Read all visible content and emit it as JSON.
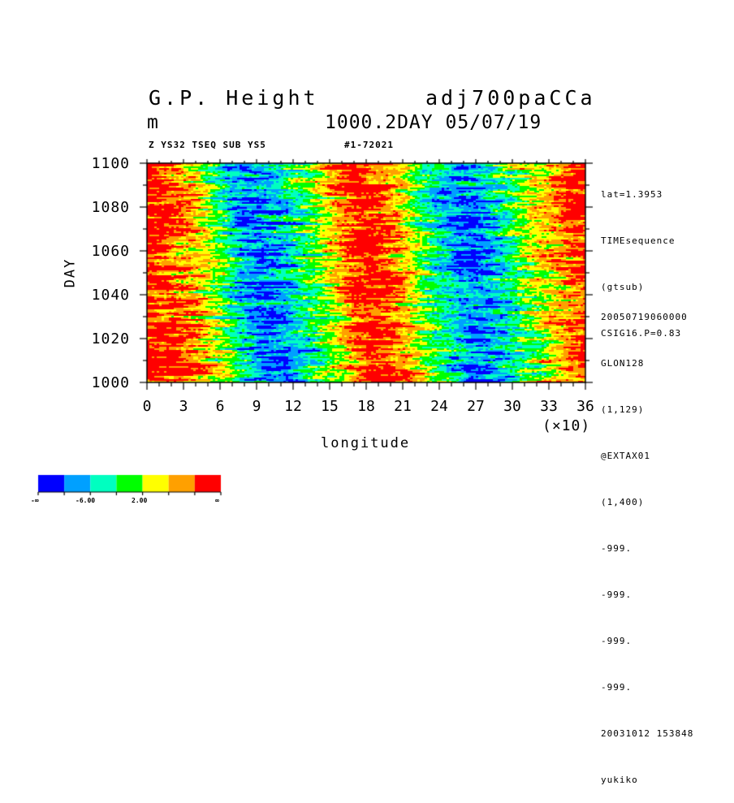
{
  "header": {
    "title_left": "G.P. Height",
    "title_right": "adj700paCCa",
    "unit": "m",
    "level_date": "1000.2DAY 05/07/19",
    "subtitle_left": "Z YS32 TSEQ SUB YS5",
    "subtitle_right": "#1-72021"
  },
  "side_info": {
    "top": [
      "lat=1.3953",
      "TIMEsequence",
      "(gtsub)",
      "CSIG16.P=0.83"
    ],
    "bottom": [
      "20050719060000",
      "GLON128",
      "(1,129)",
      "@EXTAX01",
      "(1,400)",
      "-999.",
      "-999.",
      "-999.",
      "-999.",
      "20031012 153848",
      "yukiko"
    ]
  },
  "colors": {
    "levels": [
      "#0000ff",
      "#00a0ff",
      "#00ffc0",
      "#00ff00",
      "#ffff00",
      "#ffa000",
      "#ff0000"
    ]
  },
  "legend": {
    "labels": [
      "-∞",
      "-6.00",
      "2.00",
      "∞"
    ]
  },
  "chart_data": {
    "type": "heatmap",
    "xlabel": "longitude",
    "ylabel": "DAY",
    "x_scale_label": "(×10)",
    "xlim": [
      0,
      36
    ],
    "ylim": [
      1000,
      1100
    ],
    "x_ticks": [
      "0",
      "3",
      "6",
      "9",
      "12",
      "15",
      "18",
      "21",
      "24",
      "27",
      "30",
      "33",
      "36"
    ],
    "y_ticks": [
      "1000",
      "1020",
      "1040",
      "1060",
      "1080",
      "1100"
    ],
    "pattern_by_longitude": {
      "x": [
        0,
        1.5,
        3,
        4.5,
        6,
        7.5,
        9,
        10.5,
        12,
        13.5,
        15,
        16.5,
        18,
        19.5,
        21,
        22.5,
        24,
        25.5,
        27,
        28.5,
        30,
        31.5,
        33,
        34.5,
        36
      ],
      "mean_level": [
        6.2,
        6.0,
        5.1,
        4.2,
        3.0,
        1.6,
        0.6,
        0.8,
        1.8,
        2.8,
        4.0,
        5.4,
        6.2,
        5.8,
        4.8,
        3.4,
        2.0,
        1.0,
        0.8,
        1.6,
        2.8,
        3.6,
        4.4,
        5.2,
        6.0
      ]
    }
  }
}
